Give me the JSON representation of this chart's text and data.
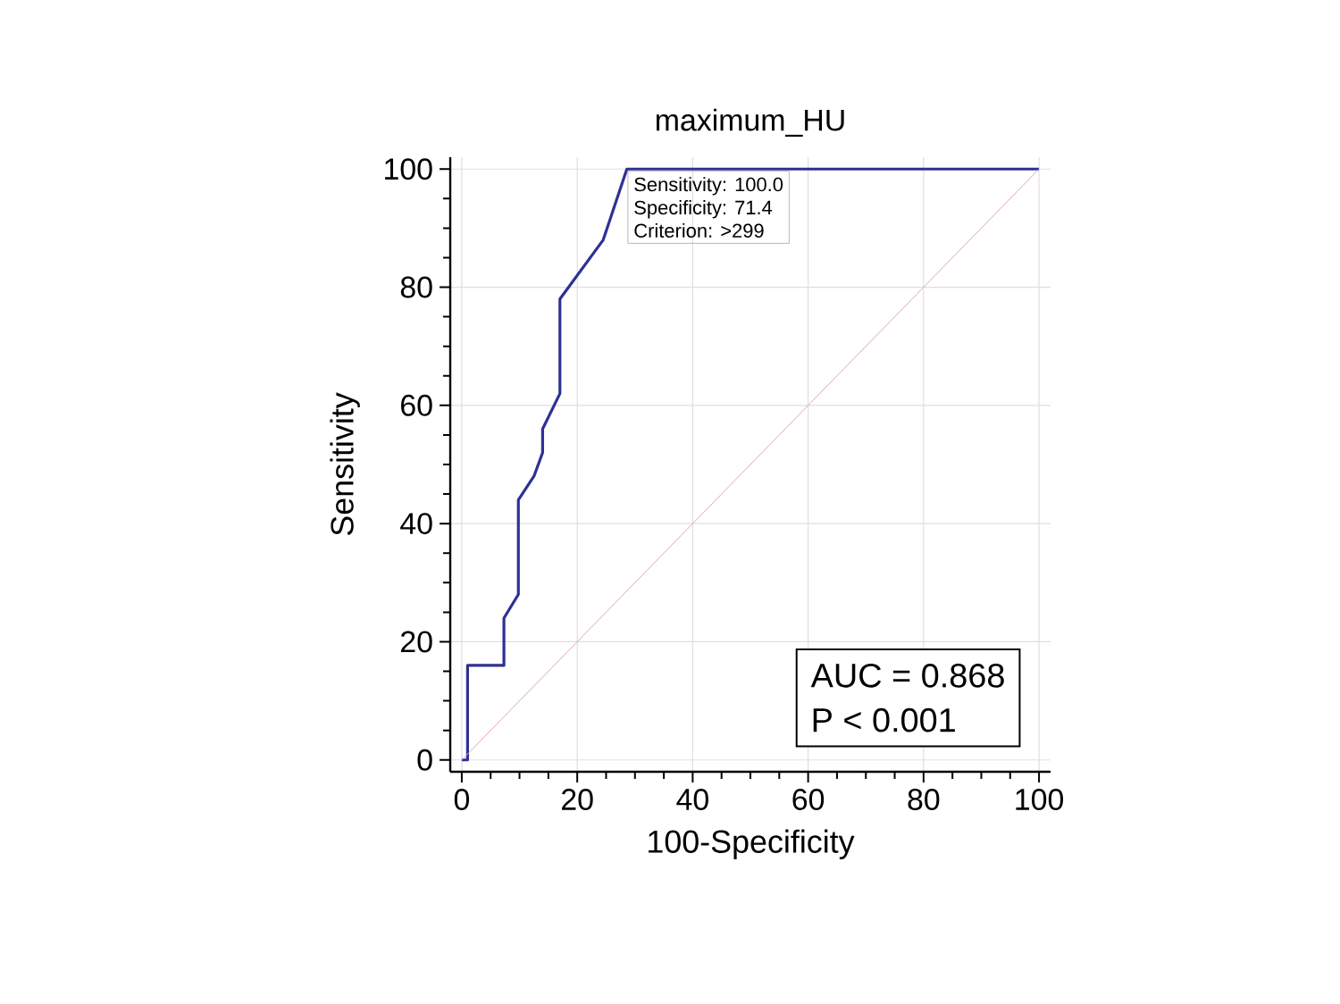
{
  "chart_data": {
    "type": "line",
    "title": "maximum_HU",
    "xlabel": "100-Specificity",
    "ylabel": "Sensitivity",
    "xlim": [
      0,
      100
    ],
    "ylim": [
      0,
      100
    ],
    "xticks": [
      0,
      20,
      40,
      60,
      80,
      100
    ],
    "yticks": [
      0,
      20,
      40,
      60,
      80,
      100
    ],
    "grid": true,
    "marker": "none",
    "series": [
      {
        "color": "#2e3192",
        "x": [
          0,
          1,
          1,
          7.3,
          7.3,
          9.8,
          9.8,
          12.5,
          14,
          14,
          17,
          17,
          24.5,
          28.6,
          100
        ],
        "values": [
          0,
          0,
          16,
          16,
          24,
          28,
          44,
          48,
          52,
          56,
          62,
          78,
          88,
          100,
          100
        ]
      },
      {
        "color": "#e0a8a8",
        "x": [
          0,
          100
        ],
        "values": [
          0,
          100
        ]
      }
    ],
    "annotations": [
      "Sensitivity: 100.0",
      "Specificity: 71.4",
      "Criterion: >299",
      "AUC = 0.868",
      "P < 0.001"
    ]
  }
}
